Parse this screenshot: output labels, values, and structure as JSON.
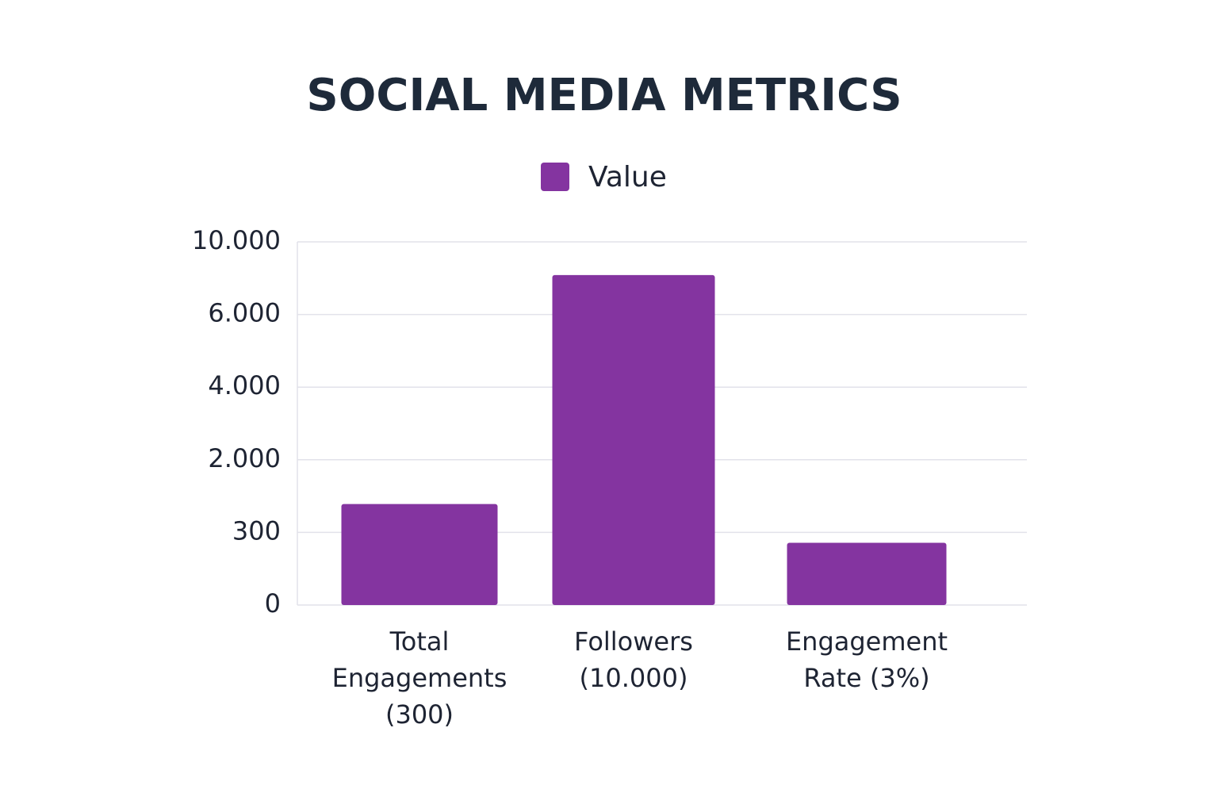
{
  "chart_data": {
    "type": "bar",
    "title": "SOCIAL MEDIA METRICS",
    "categories": [
      "Total Engagements (300)",
      "Followers (10.000)",
      "Engagement Rate (3%)"
    ],
    "series": [
      {
        "name": "Value",
        "color": "#8434a0",
        "values": [
          965,
          8170,
          257
        ]
      }
    ],
    "ylim": [
      0,
      10000
    ],
    "yticks": [
      0,
      300,
      {
        "value": 2000,
        "label": "2.000"
      },
      {
        "value": 4000,
        "label": "4.000"
      },
      {
        "value": 6000,
        "label": "6.000"
      },
      {
        "value": 10000,
        "label": "10.000"
      }
    ],
    "grid": true,
    "legend": "top"
  }
}
